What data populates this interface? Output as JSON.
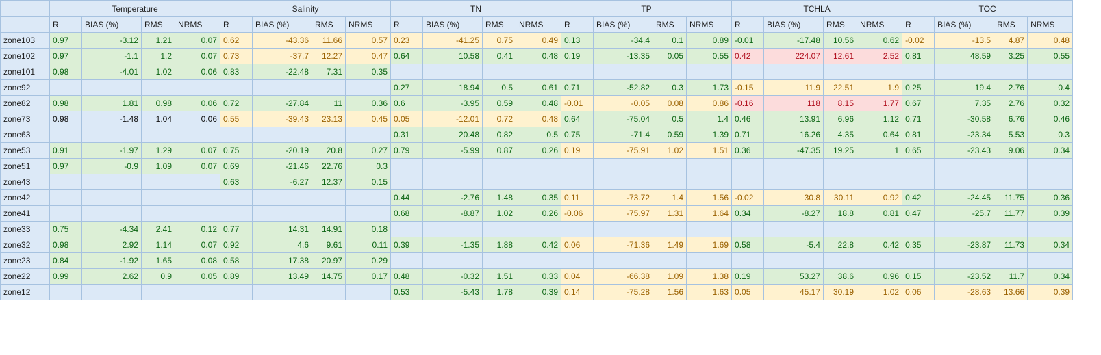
{
  "groups": [
    "Temperature",
    "Salinity",
    "TN",
    "TP",
    "TCHLA",
    "TOC"
  ],
  "metrics": [
    "R",
    "BIAS (%)",
    "RMS",
    "NRMS"
  ],
  "rows": [
    {
      "zone": "zone103",
      "cells": [
        [
          "0.97",
          "-3.12",
          "1.21",
          "0.07"
        ],
        [
          "0.62",
          "-43.36",
          "11.66",
          "0.57"
        ],
        [
          "0.23",
          "-41.25",
          "0.75",
          "0.49"
        ],
        [
          "0.13",
          "-34.4",
          "0.1",
          "0.89"
        ],
        [
          "-0.01",
          "-17.48",
          "10.56",
          "0.62"
        ],
        [
          "-0.02",
          "-13.5",
          "4.87",
          "0.48"
        ]
      ]
    },
    {
      "zone": "zone102",
      "cells": [
        [
          "0.97",
          "-1.1",
          "1.2",
          "0.07"
        ],
        [
          "0.73",
          "-37.7",
          "12.27",
          "0.47"
        ],
        [
          "0.64",
          "10.58",
          "0.41",
          "0.48"
        ],
        [
          "0.19",
          "-13.35",
          "0.05",
          "0.55"
        ],
        [
          "0.42",
          "224.07",
          "12.61",
          "2.52"
        ],
        [
          "0.81",
          "48.59",
          "3.25",
          "0.55"
        ]
      ]
    },
    {
      "zone": "zone101",
      "cells": [
        [
          "0.98",
          "-4.01",
          "1.02",
          "0.06"
        ],
        [
          "0.83",
          "-22.48",
          "7.31",
          "0.35"
        ],
        [
          "",
          "",
          "",
          ""
        ],
        [
          "",
          "",
          "",
          ""
        ],
        [
          "",
          "",
          "",
          ""
        ],
        [
          "",
          "",
          "",
          ""
        ]
      ]
    },
    {
      "zone": "zone92",
      "cells": [
        [
          "",
          "",
          "",
          ""
        ],
        [
          "",
          "",
          "",
          ""
        ],
        [
          "0.27",
          "18.94",
          "0.5",
          "0.61"
        ],
        [
          "0.71",
          "-52.82",
          "0.3",
          "1.73"
        ],
        [
          "-0.15",
          "11.9",
          "22.51",
          "1.9"
        ],
        [
          "0.25",
          "19.4",
          "2.76",
          "0.4"
        ]
      ]
    },
    {
      "zone": "zone82",
      "cells": [
        [
          "0.98",
          "1.81",
          "0.98",
          "0.06"
        ],
        [
          "0.72",
          "-27.84",
          "11",
          "0.36"
        ],
        [
          "0.6",
          "-3.95",
          "0.59",
          "0.48"
        ],
        [
          "-0.01",
          "-0.05",
          "0.08",
          "0.86"
        ],
        [
          "-0.16",
          "118",
          "8.15",
          "1.77"
        ],
        [
          "0.67",
          "7.35",
          "2.76",
          "0.32"
        ]
      ]
    },
    {
      "zone": "zone73",
      "cells": [
        [
          "0.98",
          "-1.48",
          "1.04",
          "0.06"
        ],
        [
          "0.55",
          "-39.43",
          "23.13",
          "0.45"
        ],
        [
          "0.05",
          "-12.01",
          "0.72",
          "0.48"
        ],
        [
          "0.64",
          "-75.04",
          "0.5",
          "1.4"
        ],
        [
          "0.46",
          "13.91",
          "6.96",
          "1.12"
        ],
        [
          "0.71",
          "-30.58",
          "6.76",
          "0.46"
        ]
      ]
    },
    {
      "zone": "zone63",
      "cells": [
        [
          "",
          "",
          "",
          ""
        ],
        [
          "",
          "",
          "",
          ""
        ],
        [
          "0.31",
          "20.48",
          "0.82",
          "0.5"
        ],
        [
          "0.75",
          "-71.4",
          "0.59",
          "1.39"
        ],
        [
          "0.71",
          "16.26",
          "4.35",
          "0.64"
        ],
        [
          "0.81",
          "-23.34",
          "5.53",
          "0.3"
        ]
      ]
    },
    {
      "zone": "zone53",
      "cells": [
        [
          "0.91",
          "-1.97",
          "1.29",
          "0.07"
        ],
        [
          "0.75",
          "-20.19",
          "20.8",
          "0.27"
        ],
        [
          "0.79",
          "-5.99",
          "0.87",
          "0.26"
        ],
        [
          "0.19",
          "-75.91",
          "1.02",
          "1.51"
        ],
        [
          "0.36",
          "-47.35",
          "19.25",
          "1"
        ],
        [
          "0.65",
          "-23.43",
          "9.06",
          "0.34"
        ]
      ]
    },
    {
      "zone": "zone51",
      "cells": [
        [
          "0.97",
          "-0.9",
          "1.09",
          "0.07"
        ],
        [
          "0.69",
          "-21.46",
          "22.76",
          "0.3"
        ],
        [
          "",
          "",
          "",
          ""
        ],
        [
          "",
          "",
          "",
          ""
        ],
        [
          "",
          "",
          "",
          ""
        ],
        [
          "",
          "",
          "",
          ""
        ]
      ]
    },
    {
      "zone": "zone43",
      "cells": [
        [
          "",
          "",
          "",
          ""
        ],
        [
          "0.63",
          "-6.27",
          "12.37",
          "0.15"
        ],
        [
          "",
          "",
          "",
          ""
        ],
        [
          "",
          "",
          "",
          ""
        ],
        [
          "",
          "",
          "",
          ""
        ],
        [
          "",
          "",
          "",
          ""
        ]
      ]
    },
    {
      "zone": "zone42",
      "cells": [
        [
          "",
          "",
          "",
          ""
        ],
        [
          "",
          "",
          "",
          ""
        ],
        [
          "0.44",
          "-2.76",
          "1.48",
          "0.35"
        ],
        [
          "0.11",
          "-73.72",
          "1.4",
          "1.56"
        ],
        [
          "-0.02",
          "30.8",
          "30.11",
          "0.92"
        ],
        [
          "0.42",
          "-24.45",
          "11.75",
          "0.36"
        ]
      ]
    },
    {
      "zone": "zone41",
      "cells": [
        [
          "",
          "",
          "",
          ""
        ],
        [
          "",
          "",
          "",
          ""
        ],
        [
          "0.68",
          "-8.87",
          "1.02",
          "0.26"
        ],
        [
          "-0.06",
          "-75.97",
          "1.31",
          "1.64"
        ],
        [
          "0.34",
          "-8.27",
          "18.8",
          "0.81"
        ],
        [
          "0.47",
          "-25.7",
          "11.77",
          "0.39"
        ]
      ]
    },
    {
      "zone": "zone33",
      "cells": [
        [
          "0.75",
          "-4.34",
          "2.41",
          "0.12"
        ],
        [
          "0.77",
          "14.31",
          "14.91",
          "0.18"
        ],
        [
          "",
          "",
          "",
          ""
        ],
        [
          "",
          "",
          "",
          ""
        ],
        [
          "",
          "",
          "",
          ""
        ],
        [
          "",
          "",
          "",
          ""
        ]
      ]
    },
    {
      "zone": "zone32",
      "cells": [
        [
          "0.98",
          "2.92",
          "1.14",
          "0.07"
        ],
        [
          "0.92",
          "4.6",
          "9.61",
          "0.11"
        ],
        [
          "0.39",
          "-1.35",
          "1.88",
          "0.42"
        ],
        [
          "0.06",
          "-71.36",
          "1.49",
          "1.69"
        ],
        [
          "0.58",
          "-5.4",
          "22.8",
          "0.42"
        ],
        [
          "0.35",
          "-23.87",
          "11.73",
          "0.34"
        ]
      ]
    },
    {
      "zone": "zone23",
      "cells": [
        [
          "0.84",
          "-1.92",
          "1.65",
          "0.08"
        ],
        [
          "0.58",
          "17.38",
          "20.97",
          "0.29"
        ],
        [
          "",
          "",
          "",
          ""
        ],
        [
          "",
          "",
          "",
          ""
        ],
        [
          "",
          "",
          "",
          ""
        ],
        [
          "",
          "",
          "",
          ""
        ]
      ]
    },
    {
      "zone": "zone22",
      "cells": [
        [
          "0.99",
          "2.62",
          "0.9",
          "0.05"
        ],
        [
          "0.89",
          "13.49",
          "14.75",
          "0.17"
        ],
        [
          "0.48",
          "-0.32",
          "1.51",
          "0.33"
        ],
        [
          "0.04",
          "-66.38",
          "1.09",
          "1.38"
        ],
        [
          "0.19",
          "53.27",
          "38.6",
          "0.96"
        ],
        [
          "0.15",
          "-23.52",
          "11.7",
          "0.34"
        ]
      ]
    },
    {
      "zone": "zone12",
      "cells": [
        [
          "",
          "",
          "",
          ""
        ],
        [
          "",
          "",
          "",
          ""
        ],
        [
          "0.53",
          "-5.43",
          "1.78",
          "0.39"
        ],
        [
          "0.14",
          "-75.28",
          "1.56",
          "1.63"
        ],
        [
          "0.05",
          "45.17",
          "30.19",
          "1.02"
        ],
        [
          "0.06",
          "-28.63",
          "13.66",
          "0.39"
        ]
      ]
    }
  ],
  "colors": {
    "green_fill": "#dcefd6",
    "green_text": "#0d6614",
    "yellow_fill": "#fff2cf",
    "yellow_text": "#9a6100",
    "red_fill": "#fcdcdc",
    "red_text": "#b0101f",
    "blank_fill": "#dce9f7",
    "grid_line": "#a6c2e0"
  },
  "cell_status": [
    [
      "g",
      "y",
      "y",
      "g",
      "g",
      "y"
    ],
    [
      "g",
      "y",
      "g",
      "g",
      "r",
      "g"
    ],
    [
      "g",
      "g",
      "b",
      "b",
      "b",
      "b"
    ],
    [
      "b",
      "b",
      "g",
      "g",
      "y",
      "g"
    ],
    [
      "g",
      "g",
      "g",
      "y",
      "r",
      "g"
    ],
    [
      "n",
      "y",
      "y",
      "g",
      "g",
      "g"
    ],
    [
      "b",
      "b",
      "g",
      "g",
      "g",
      "g"
    ],
    [
      "g",
      "g",
      "g",
      "y",
      "g",
      "g"
    ],
    [
      "g",
      "g",
      "b",
      "b",
      "b",
      "b"
    ],
    [
      "b",
      "g",
      "b",
      "b",
      "b",
      "b"
    ],
    [
      "b",
      "b",
      "g",
      "y",
      "y",
      "g"
    ],
    [
      "b",
      "b",
      "g",
      "y",
      "g",
      "g"
    ],
    [
      "g",
      "g",
      "b",
      "b",
      "b",
      "b"
    ],
    [
      "g",
      "g",
      "g",
      "y",
      "g",
      "g"
    ],
    [
      "g",
      "g",
      "b",
      "b",
      "b",
      "b"
    ],
    [
      "g",
      "g",
      "g",
      "y",
      "g",
      "g"
    ],
    [
      "b",
      "b",
      "g",
      "y",
      "y",
      "y"
    ]
  ]
}
